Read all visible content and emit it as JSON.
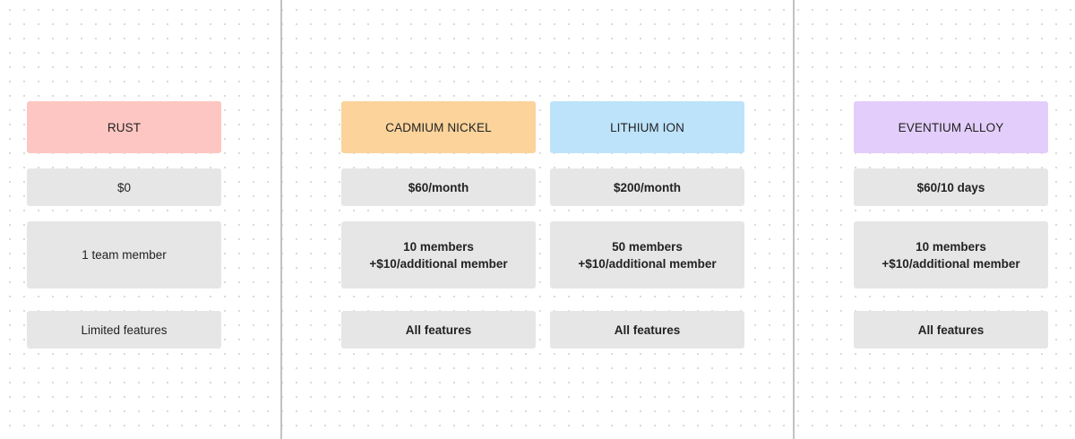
{
  "plans": [
    {
      "name": "RUST",
      "color": "#fdc6c2",
      "price": "$0",
      "members_line1": "1 team member",
      "members_line2": "",
      "features": "Limited features"
    },
    {
      "name": "CADMIUM NICKEL",
      "color": "#fbd39b",
      "price": "$60/month",
      "members_line1": "10 members",
      "members_line2": "+$10/additional member",
      "features": "All features"
    },
    {
      "name": "LITHIUM ION",
      "color": "#bde3fb",
      "price": "$200/month",
      "members_line1": "50 members",
      "members_line2": "+$10/additional member",
      "features": "All features"
    },
    {
      "name": "EVENTIUM ALLOY",
      "color": "#e3cdfb",
      "price": "$60/10 days",
      "members_line1": "10 members",
      "members_line2": "+$10/additional member",
      "features": "All features"
    }
  ]
}
